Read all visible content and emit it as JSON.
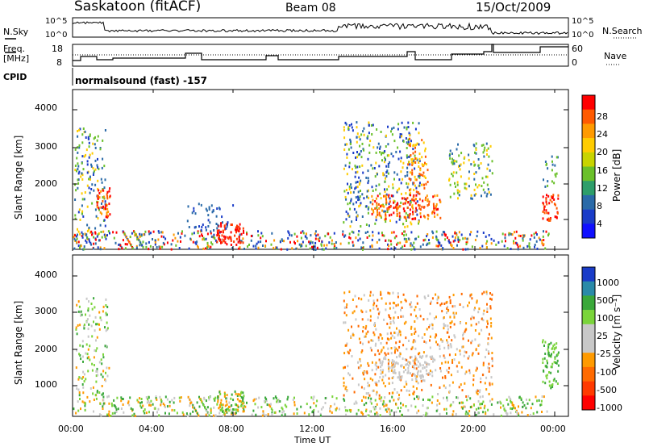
{
  "header": {
    "station": "Saskatoon (fitACF)",
    "beam": "Beam 08",
    "date": "15/Oct/2009"
  },
  "top_panel": {
    "left_label": "N.Sky",
    "right_label": "N.Search",
    "left_ticks": [
      "10^5",
      "10^0"
    ],
    "right_ticks": [
      "10^5",
      "10^0"
    ]
  },
  "freq_panel": {
    "left_label_1": "Freq.",
    "left_label_2": "[MHz]",
    "right_label": "Nave",
    "left_ticks": [
      "18",
      "8"
    ],
    "right_ticks": [
      "60",
      "0"
    ]
  },
  "cpid": {
    "label": "CPID",
    "program": "normalsound (fast) -157"
  },
  "power_panel": {
    "ylabel": "Slant Range [km]",
    "yticks": [
      "4000",
      "3000",
      "2000",
      "1000"
    ],
    "colorbar_label": "Power [dB]",
    "colorbar_ticks": [
      "28",
      "24",
      "20",
      "16",
      "12",
      "8",
      "4"
    ],
    "colorbar_colors": [
      "#ff0000",
      "#ff5a00",
      "#ff9a00",
      "#ffcc00",
      "#c8d400",
      "#6ac02a",
      "#2e9e6a",
      "#2a6aa8",
      "#1a3cc8",
      "#1010ff"
    ]
  },
  "velocity_panel": {
    "ylabel": "Slant Range [km]",
    "yticks": [
      "4000",
      "3000",
      "2000",
      "1000"
    ],
    "colorbar_label": "Velocity [m s⁻¹]",
    "colorbar_ticks": [
      "1000",
      "500",
      "100",
      "25",
      "-25",
      "-100",
      "-500",
      "-1000"
    ],
    "colorbar_colors": [
      "#1a3cc8",
      "#2a8aa8",
      "#3aa83a",
      "#7ad43a",
      "#c8c8c8",
      "#c8c8c8",
      "#ff9a00",
      "#ff6a00",
      "#ff3a00",
      "#ff0000"
    ]
  },
  "xaxis": {
    "ticks": [
      "00:00",
      "04:00",
      "08:00",
      "12:00",
      "16:00",
      "20:00",
      "00:00"
    ],
    "label": "Time UT"
  }
}
